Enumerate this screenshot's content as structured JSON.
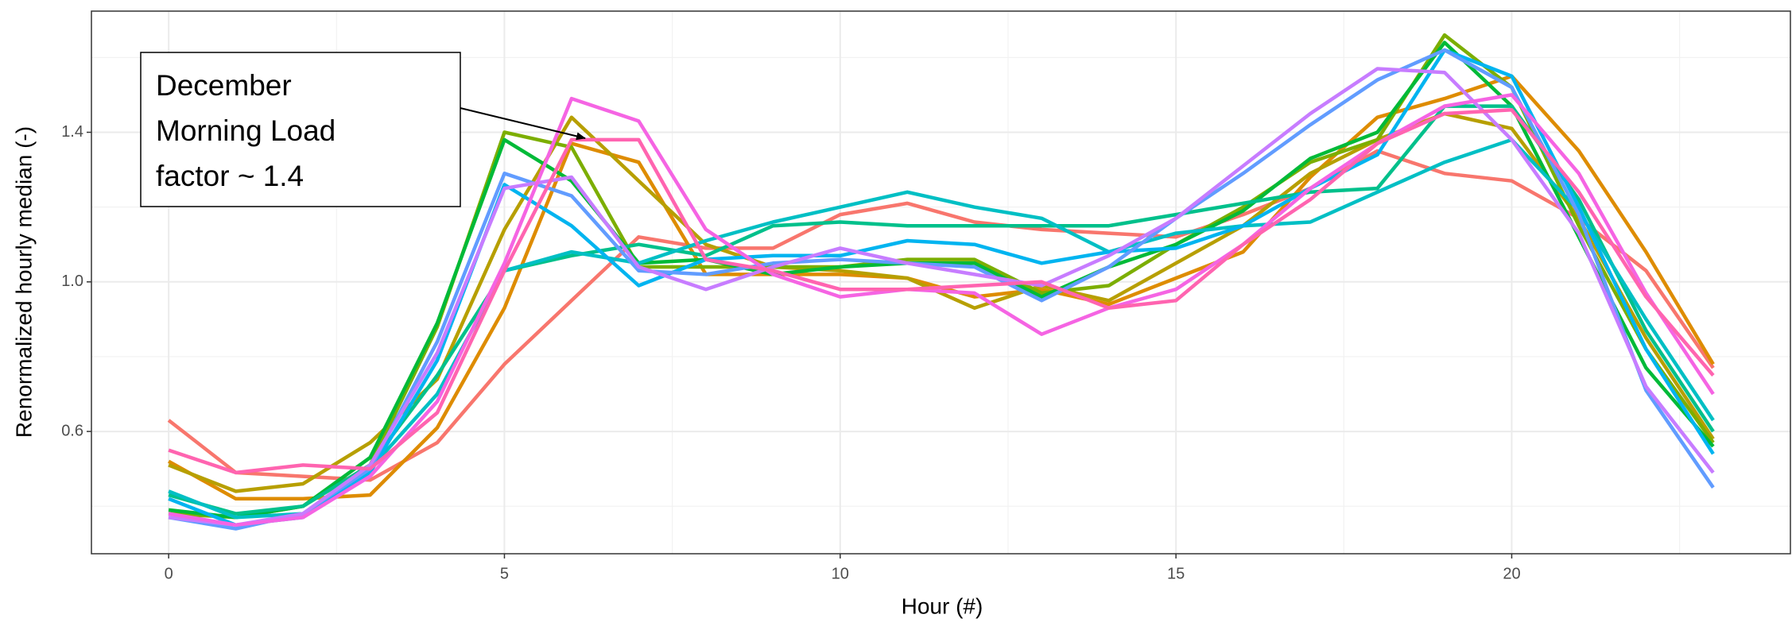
{
  "chart_data": {
    "type": "line",
    "x_label": "Hour (#)",
    "y_label": "Renormalized hourly median (-)",
    "x": [
      0,
      1,
      2,
      3,
      4,
      5,
      6,
      7,
      8,
      9,
      10,
      11,
      12,
      13,
      14,
      15,
      16,
      17,
      18,
      19,
      20,
      21,
      22,
      23
    ],
    "xlim": [
      -1.15,
      24.15
    ],
    "xticks": [
      0,
      5,
      10,
      15,
      20
    ],
    "minor_xticks": [
      2.5,
      7.5,
      12.5,
      17.5,
      22.5
    ],
    "ylim": [
      0.273,
      1.724
    ],
    "yticks": [
      {
        "value": 0.6,
        "label": "0.6"
      },
      {
        "value": 1.0,
        "label": "1.0"
      },
      {
        "value": 1.4,
        "label": "1.4"
      }
    ],
    "minor_yticks": [
      0.4,
      0.8,
      1.2,
      1.6
    ],
    "grid": true,
    "annotation": {
      "lines": [
        "December",
        "Morning Load",
        "factor ~ 1.4"
      ]
    },
    "series": [
      {
        "color": "#F8766D",
        "values": [
          0.63,
          0.49,
          0.48,
          0.47,
          0.57,
          0.78,
          0.95,
          1.12,
          1.09,
          1.09,
          1.18,
          1.21,
          1.16,
          1.14,
          1.13,
          1.12,
          1.18,
          1.25,
          1.35,
          1.29,
          1.27,
          1.17,
          1.03,
          0.77
        ]
      },
      {
        "color": "#DE8C00",
        "values": [
          0.52,
          0.42,
          0.42,
          0.43,
          0.61,
          0.93,
          1.37,
          1.32,
          1.02,
          1.02,
          1.02,
          1.01,
          0.96,
          0.98,
          0.94,
          1.01,
          1.08,
          1.28,
          1.44,
          1.49,
          1.55,
          1.35,
          1.08,
          0.78
        ]
      },
      {
        "color": "#B79F00",
        "values": [
          0.51,
          0.44,
          0.46,
          0.57,
          0.74,
          1.14,
          1.44,
          1.27,
          1.1,
          1.04,
          1.03,
          1.01,
          0.93,
          0.99,
          0.95,
          1.05,
          1.15,
          1.29,
          1.38,
          1.45,
          1.41,
          1.17,
          0.85,
          0.58
        ]
      },
      {
        "color": "#7CAE00",
        "values": [
          0.38,
          0.37,
          0.4,
          0.51,
          0.88,
          1.4,
          1.36,
          1.04,
          1.04,
          1.04,
          1.04,
          1.06,
          1.06,
          0.97,
          0.99,
          1.1,
          1.2,
          1.32,
          1.38,
          1.66,
          1.52,
          1.15,
          0.82,
          0.57
        ]
      },
      {
        "color": "#00BA38",
        "values": [
          0.39,
          0.37,
          0.4,
          0.53,
          0.89,
          1.38,
          1.27,
          1.05,
          1.06,
          1.02,
          1.04,
          1.05,
          1.05,
          0.96,
          1.04,
          1.1,
          1.19,
          1.33,
          1.4,
          1.64,
          1.47,
          1.12,
          0.77,
          0.56
        ]
      },
      {
        "color": "#00C08B",
        "values": [
          0.43,
          0.38,
          0.4,
          0.51,
          0.75,
          1.03,
          1.07,
          1.1,
          1.07,
          1.15,
          1.16,
          1.15,
          1.15,
          1.15,
          1.15,
          1.18,
          1.21,
          1.24,
          1.25,
          1.47,
          1.47,
          1.22,
          0.87,
          0.6
        ]
      },
      {
        "color": "#00BFC4",
        "values": [
          0.44,
          0.37,
          0.38,
          0.5,
          0.7,
          1.03,
          1.08,
          1.05,
          1.11,
          1.16,
          1.2,
          1.24,
          1.2,
          1.17,
          1.08,
          1.13,
          1.15,
          1.16,
          1.24,
          1.32,
          1.38,
          1.19,
          0.9,
          0.63
        ]
      },
      {
        "color": "#00B4F0",
        "values": [
          0.42,
          0.35,
          0.37,
          0.49,
          0.79,
          1.26,
          1.15,
          0.99,
          1.06,
          1.07,
          1.07,
          1.11,
          1.1,
          1.05,
          1.08,
          1.09,
          1.15,
          1.25,
          1.34,
          1.62,
          1.55,
          1.2,
          0.82,
          0.54
        ]
      },
      {
        "color": "#619CFF",
        "values": [
          0.37,
          0.34,
          0.38,
          0.5,
          0.84,
          1.29,
          1.23,
          1.03,
          1.02,
          1.05,
          1.06,
          1.05,
          1.04,
          0.95,
          1.04,
          1.17,
          1.29,
          1.42,
          1.54,
          1.62,
          1.52,
          1.18,
          0.71,
          0.45
        ]
      },
      {
        "color": "#C77CFF",
        "values": [
          0.37,
          0.35,
          0.38,
          0.51,
          0.81,
          1.25,
          1.28,
          1.04,
          0.98,
          1.04,
          1.09,
          1.05,
          1.02,
          0.99,
          1.07,
          1.17,
          1.31,
          1.45,
          1.57,
          1.56,
          1.38,
          1.13,
          0.72,
          0.49
        ]
      },
      {
        "color": "#F564E3",
        "values": [
          0.38,
          0.35,
          0.37,
          0.48,
          0.68,
          1.05,
          1.49,
          1.43,
          1.14,
          1.02,
          0.96,
          0.98,
          0.97,
          0.86,
          0.93,
          0.98,
          1.1,
          1.25,
          1.37,
          1.47,
          1.5,
          1.29,
          0.97,
          0.7
        ]
      },
      {
        "color": "#FF64B0",
        "values": [
          0.55,
          0.49,
          0.51,
          0.5,
          0.65,
          1.03,
          1.38,
          1.38,
          1.06,
          1.03,
          0.98,
          0.98,
          0.99,
          1.0,
          0.93,
          0.95,
          1.1,
          1.22,
          1.37,
          1.45,
          1.46,
          1.24,
          0.96,
          0.75
        ]
      }
    ]
  }
}
